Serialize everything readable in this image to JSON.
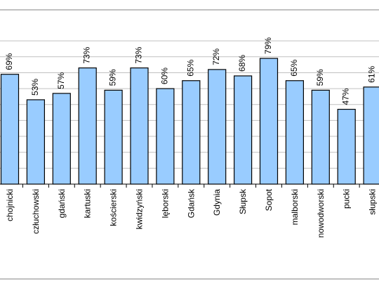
{
  "colors": {
    "bar_fill": "#99ccff",
    "bar_stroke": "#000000",
    "grid": "#c0c0c0",
    "frame": "#808080"
  },
  "chart_data": {
    "type": "bar",
    "categories": [
      "chojnicki",
      "człuchowski",
      "gdański",
      "kartuski",
      "kościerski",
      "kwidzyński",
      "lęborski",
      "Gdańsk",
      "Gdynia",
      "Słupsk",
      "Sopot",
      "malborski",
      "nowodworski",
      "pucki",
      "słupski"
    ],
    "values": [
      69,
      53,
      57,
      73,
      59,
      73,
      60,
      65,
      72,
      68,
      79,
      65,
      59,
      47,
      61
    ],
    "data_labels": [
      "69%",
      "53%",
      "57%",
      "73%",
      "59%",
      "73%",
      "60%",
      "65%",
      "72%",
      "68%",
      "79%",
      "65%",
      "59%",
      "47%",
      "61%"
    ],
    "title": "",
    "xlabel": "",
    "ylabel": "",
    "ylim": [
      0,
      100
    ],
    "grid": true,
    "legend": "none"
  }
}
